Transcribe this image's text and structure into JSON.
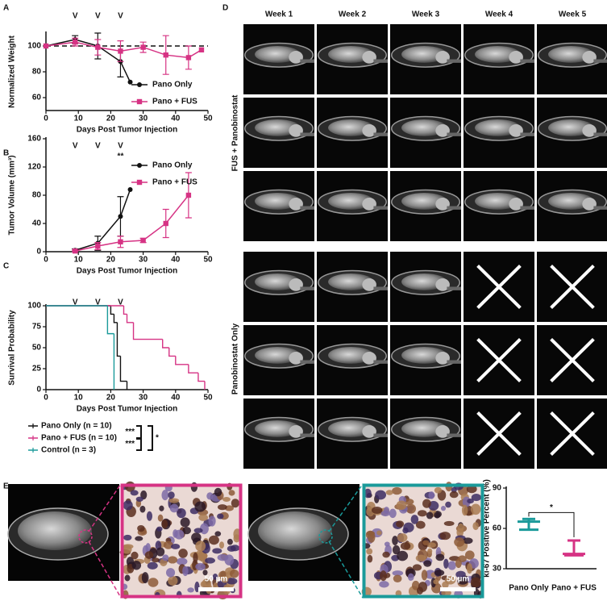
{
  "panel_labels": [
    "A",
    "B",
    "C",
    "D",
    "E"
  ],
  "chart_data": [
    {
      "type": "line",
      "xlabel": "Days Post Tumor Injection",
      "ylabel": "Normalized Weight",
      "xlim": [
        0,
        50
      ],
      "xticks": [
        0,
        10,
        20,
        30,
        40,
        50
      ],
      "ylim": [
        50,
        110
      ],
      "yticks": [
        60,
        80,
        100
      ],
      "reference_line": 100,
      "dose_days": [
        9,
        16,
        23
      ],
      "dose_label": "V",
      "legend": "lower right",
      "series": [
        {
          "name": "Pano Only",
          "color": "#111111",
          "marker": "circle",
          "x": [
            0,
            9,
            16,
            23,
            26
          ],
          "values": [
            100,
            105,
            100,
            88,
            72
          ],
          "errors": [
            null,
            3,
            10,
            12,
            null
          ]
        },
        {
          "name": "Pano + FUS",
          "color": "#d63384",
          "marker": "square",
          "x": [
            0,
            9,
            16,
            23,
            30,
            37,
            44,
            48
          ],
          "values": [
            100,
            103,
            99,
            96,
            99,
            93,
            91,
            97
          ],
          "errors": [
            null,
            3,
            6,
            8,
            4,
            15,
            9,
            null
          ]
        }
      ]
    },
    {
      "type": "line",
      "xlabel": "Days Post Tumor Injection",
      "ylabel": "Tumor Volume (mm³)",
      "xlim": [
        0,
        50
      ],
      "xticks": [
        0,
        10,
        20,
        30,
        40,
        50
      ],
      "ylim": [
        0,
        160
      ],
      "yticks": [
        0,
        40,
        80,
        120,
        160
      ],
      "dose_days": [
        9,
        16,
        23
      ],
      "dose_label": "V",
      "significance": "**",
      "legend": "upper right",
      "series": [
        {
          "name": "Pano Only",
          "color": "#111111",
          "marker": "circle",
          "x": [
            9,
            16,
            23,
            26
          ],
          "values": [
            2,
            12,
            50,
            88
          ],
          "errors": [
            2,
            10,
            28,
            null
          ]
        },
        {
          "name": "Pano + FUS",
          "color": "#d63384",
          "marker": "square",
          "x": [
            9,
            16,
            23,
            30,
            37,
            44
          ],
          "values": [
            1,
            8,
            14,
            16,
            40,
            80
          ],
          "errors": [
            1,
            5,
            8,
            3,
            20,
            32
          ]
        }
      ]
    },
    {
      "type": "step",
      "xlabel": "Days Post Tumor Injection",
      "ylabel": "Survival Probability",
      "xlim": [
        0,
        50
      ],
      "xticks": [
        0,
        10,
        20,
        30,
        40,
        50
      ],
      "ylim": [
        0,
        100
      ],
      "yticks": [
        0,
        25,
        50,
        75,
        100
      ],
      "dose_days": [
        9,
        16,
        23
      ],
      "dose_label": "V",
      "legend": "below",
      "significance": [
        "***",
        "***",
        "*"
      ],
      "series": [
        {
          "name": "Pano Only (n = 10)",
          "color": "#111111",
          "x": [
            0,
            20,
            21,
            22,
            23,
            25
          ],
          "values": [
            100,
            90,
            80,
            40,
            10,
            0
          ]
        },
        {
          "name": "Pano + FUS (n = 10)",
          "color": "#d63384",
          "x": [
            0,
            24,
            25,
            27,
            36,
            38,
            40,
            44,
            47,
            49
          ],
          "values": [
            100,
            90,
            80,
            60,
            50,
            40,
            30,
            20,
            10,
            0
          ]
        },
        {
          "name": "Control (n = 3)",
          "color": "#1a9a9a",
          "x": [
            0,
            19,
            21
          ],
          "values": [
            100,
            66.7,
            0
          ]
        }
      ]
    },
    {
      "type": "range",
      "ylabel": "ki-67 Positive Percent (%)",
      "ylim": [
        30,
        90
      ],
      "yticks": [
        30,
        60,
        90
      ],
      "categories": [
        "Pano Only",
        "Pano + FUS"
      ],
      "colors": [
        "#1a9a9a",
        "#d63384"
      ],
      "low": [
        59,
        40
      ],
      "mid": [
        65,
        41
      ],
      "high": [
        67,
        51
      ],
      "significance": "*"
    }
  ],
  "mri": {
    "columns": [
      "Week 1",
      "Week 2",
      "Week 3",
      "Week 4",
      "Week 5"
    ],
    "groups": [
      "FUS + Panobinostat",
      "Panobinostat Only"
    ]
  },
  "micrographs": {
    "scale_bars": [
      "50 µm",
      "50 µm"
    ]
  }
}
